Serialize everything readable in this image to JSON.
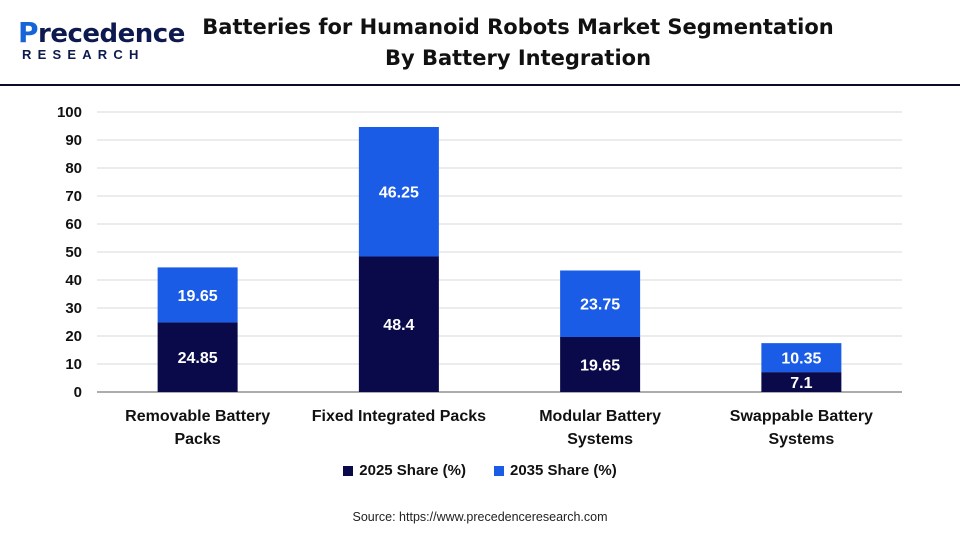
{
  "brand": {
    "logo_text": "Precedence",
    "logo_sub": "RESEARCH"
  },
  "header": {
    "title_line1": "Batteries for Humanoid Robots Market Segmentation",
    "title_line2": "By Battery Integration"
  },
  "colors": {
    "series_2025": "#0a0a4a",
    "series_2035": "#1a5ce6",
    "grid": "#d9d9d9",
    "axis": "#595959"
  },
  "legend": {
    "items": [
      "2025 Share (%)",
      "2035 Share (%)"
    ]
  },
  "source": "Source: https://www.precedenceresearch.com",
  "chart_data": {
    "type": "bar",
    "stacked": true,
    "categories": [
      [
        "Removable Battery",
        "Packs"
      ],
      [
        "Fixed Integrated Packs"
      ],
      [
        "Modular Battery",
        "Systems"
      ],
      [
        "Swappable Battery",
        "Systems"
      ]
    ],
    "series": [
      {
        "name": "2025 Share (%)",
        "values": [
          24.85,
          48.4,
          19.65,
          7.1
        ],
        "labels": [
          "24.85",
          "48.4",
          "19.65",
          "7.1"
        ]
      },
      {
        "name": "2035 Share (%)",
        "values": [
          19.65,
          46.25,
          23.75,
          10.35
        ],
        "labels": [
          "19.65",
          "46.25",
          "23.75",
          "10.35"
        ]
      }
    ],
    "ylim": [
      0,
      100
    ],
    "yticks": [
      0,
      10,
      20,
      30,
      40,
      50,
      60,
      70,
      80,
      90,
      100
    ],
    "grid": true,
    "legend_position": "bottom"
  }
}
